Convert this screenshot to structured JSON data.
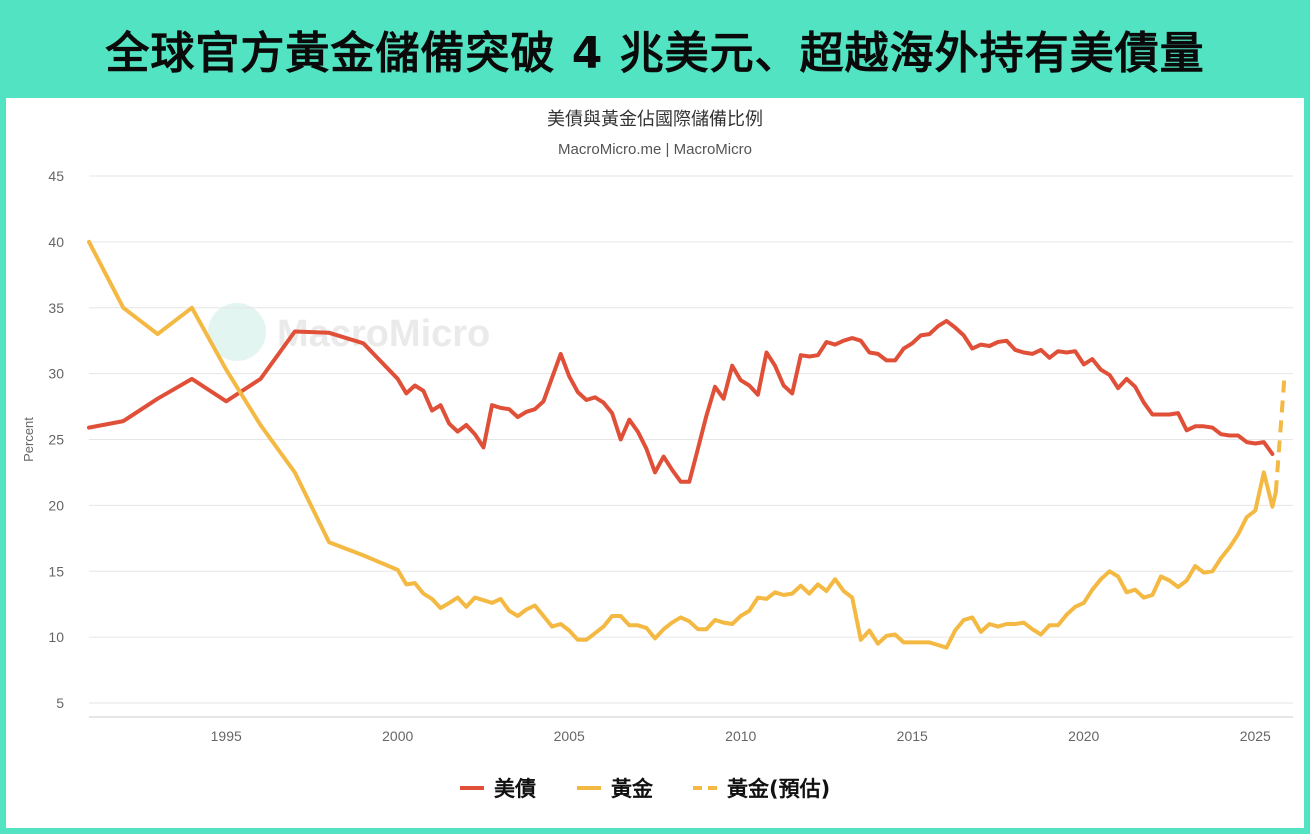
{
  "banner": {
    "title": "全球官方黃金儲備突破 4 兆美元、超越海外持有美債量"
  },
  "watermark": "MacroMicro",
  "colors": {
    "treasury": "#e05038",
    "gold": "#f4b942",
    "banner_bg": "#52e3c2"
  },
  "chart_data": {
    "type": "line",
    "title": "美債與黃金佔國際儲備比例",
    "subtitle": "MacroMicro.me | MacroMicro",
    "ylabel": "Percent",
    "xlabel": "",
    "ylim": [
      5,
      45
    ],
    "xlim": [
      1991,
      2026.1
    ],
    "yticks": [
      5,
      10,
      15,
      20,
      25,
      30,
      35,
      40,
      45
    ],
    "xticks": [
      1995,
      2000,
      2005,
      2010,
      2015,
      2020,
      2025
    ],
    "grid": "horizontal",
    "legend_position": "bottom",
    "series": [
      {
        "name": "美債",
        "style": "solid",
        "color": "#e05038",
        "points": [
          [
            1991.0,
            25.9
          ],
          [
            1992.0,
            26.4
          ],
          [
            1993.0,
            28.1
          ],
          [
            1994.0,
            29.6
          ],
          [
            1995.0,
            27.9
          ],
          [
            1996.0,
            29.6
          ],
          [
            1997.0,
            33.2
          ],
          [
            1998.0,
            33.1
          ],
          [
            1999.0,
            32.3
          ],
          [
            2000.0,
            29.6
          ],
          [
            2000.25,
            28.5
          ],
          [
            2000.5,
            29.1
          ],
          [
            2000.75,
            28.7
          ],
          [
            2001.0,
            27.2
          ],
          [
            2001.25,
            27.6
          ],
          [
            2001.5,
            26.2
          ],
          [
            2001.75,
            25.6
          ],
          [
            2002.0,
            26.1
          ],
          [
            2002.25,
            25.4
          ],
          [
            2002.5,
            24.4
          ],
          [
            2002.75,
            27.6
          ],
          [
            2003.0,
            27.4
          ],
          [
            2003.25,
            27.3
          ],
          [
            2003.5,
            26.7
          ],
          [
            2003.75,
            27.1
          ],
          [
            2004.0,
            27.3
          ],
          [
            2004.25,
            27.9
          ],
          [
            2004.5,
            29.7
          ],
          [
            2004.75,
            31.5
          ],
          [
            2005.0,
            29.8
          ],
          [
            2005.25,
            28.6
          ],
          [
            2005.5,
            28.0
          ],
          [
            2005.75,
            28.2
          ],
          [
            2006.0,
            27.8
          ],
          [
            2006.25,
            27.0
          ],
          [
            2006.5,
            25.0
          ],
          [
            2006.75,
            26.5
          ],
          [
            2007.0,
            25.6
          ],
          [
            2007.25,
            24.3
          ],
          [
            2007.5,
            22.5
          ],
          [
            2007.75,
            23.7
          ],
          [
            2008.0,
            22.7
          ],
          [
            2008.25,
            21.8
          ],
          [
            2008.5,
            21.8
          ],
          [
            2008.75,
            24.3
          ],
          [
            2009.0,
            26.8
          ],
          [
            2009.25,
            29.0
          ],
          [
            2009.5,
            28.1
          ],
          [
            2009.75,
            30.6
          ],
          [
            2010.0,
            29.5
          ],
          [
            2010.25,
            29.1
          ],
          [
            2010.5,
            28.4
          ],
          [
            2010.75,
            31.6
          ],
          [
            2011.0,
            30.6
          ],
          [
            2011.25,
            29.1
          ],
          [
            2011.5,
            28.5
          ],
          [
            2011.75,
            31.4
          ],
          [
            2012.0,
            31.3
          ],
          [
            2012.25,
            31.4
          ],
          [
            2012.5,
            32.4
          ],
          [
            2012.75,
            32.2
          ],
          [
            2013.0,
            32.5
          ],
          [
            2013.25,
            32.7
          ],
          [
            2013.5,
            32.5
          ],
          [
            2013.75,
            31.6
          ],
          [
            2014.0,
            31.5
          ],
          [
            2014.25,
            31.0
          ],
          [
            2014.5,
            31.0
          ],
          [
            2014.75,
            31.9
          ],
          [
            2015.0,
            32.3
          ],
          [
            2015.25,
            32.9
          ],
          [
            2015.5,
            33.0
          ],
          [
            2015.75,
            33.6
          ],
          [
            2016.0,
            34.0
          ],
          [
            2016.25,
            33.5
          ],
          [
            2016.5,
            32.9
          ],
          [
            2016.75,
            31.9
          ],
          [
            2017.0,
            32.2
          ],
          [
            2017.25,
            32.1
          ],
          [
            2017.5,
            32.4
          ],
          [
            2017.75,
            32.5
          ],
          [
            2018.0,
            31.8
          ],
          [
            2018.25,
            31.6
          ],
          [
            2018.5,
            31.5
          ],
          [
            2018.75,
            31.8
          ],
          [
            2019.0,
            31.2
          ],
          [
            2019.25,
            31.7
          ],
          [
            2019.5,
            31.6
          ],
          [
            2019.75,
            31.7
          ],
          [
            2020.0,
            30.7
          ],
          [
            2020.25,
            31.1
          ],
          [
            2020.5,
            30.3
          ],
          [
            2020.75,
            29.9
          ],
          [
            2021.0,
            28.9
          ],
          [
            2021.25,
            29.6
          ],
          [
            2021.5,
            29.0
          ],
          [
            2021.75,
            27.8
          ],
          [
            2022.0,
            26.9
          ],
          [
            2022.25,
            26.9
          ],
          [
            2022.5,
            26.9
          ],
          [
            2022.75,
            27.0
          ],
          [
            2023.0,
            25.7
          ],
          [
            2023.25,
            26.0
          ],
          [
            2023.5,
            26.0
          ],
          [
            2023.75,
            25.9
          ],
          [
            2024.0,
            25.4
          ],
          [
            2024.25,
            25.3
          ],
          [
            2024.5,
            25.3
          ],
          [
            2024.75,
            24.8
          ],
          [
            2025.0,
            24.7
          ],
          [
            2025.25,
            24.8
          ],
          [
            2025.5,
            23.9
          ]
        ]
      },
      {
        "name": "黃金",
        "style": "solid",
        "color": "#f4b942",
        "points": [
          [
            1991.0,
            40.0
          ],
          [
            1992.0,
            35.0
          ],
          [
            1993.0,
            33.0
          ],
          [
            1994.0,
            35.0
          ],
          [
            1995.0,
            30.3
          ],
          [
            1996.0,
            26.1
          ],
          [
            1997.0,
            22.5
          ],
          [
            1998.0,
            17.2
          ],
          [
            1999.0,
            16.2
          ],
          [
            2000.0,
            15.1
          ],
          [
            2000.25,
            14.0
          ],
          [
            2000.5,
            14.1
          ],
          [
            2000.75,
            13.3
          ],
          [
            2001.0,
            12.9
          ],
          [
            2001.25,
            12.2
          ],
          [
            2001.5,
            12.6
          ],
          [
            2001.75,
            13.0
          ],
          [
            2002.0,
            12.3
          ],
          [
            2002.25,
            13.0
          ],
          [
            2002.5,
            12.8
          ],
          [
            2002.75,
            12.6
          ],
          [
            2003.0,
            12.9
          ],
          [
            2003.25,
            12.0
          ],
          [
            2003.5,
            11.6
          ],
          [
            2003.75,
            12.1
          ],
          [
            2004.0,
            12.4
          ],
          [
            2004.25,
            11.6
          ],
          [
            2004.5,
            10.8
          ],
          [
            2004.75,
            11.0
          ],
          [
            2005.0,
            10.5
          ],
          [
            2005.25,
            9.8
          ],
          [
            2005.5,
            9.8
          ],
          [
            2005.75,
            10.3
          ],
          [
            2006.0,
            10.8
          ],
          [
            2006.25,
            11.6
          ],
          [
            2006.5,
            11.6
          ],
          [
            2006.75,
            10.9
          ],
          [
            2007.0,
            10.9
          ],
          [
            2007.25,
            10.7
          ],
          [
            2007.5,
            9.9
          ],
          [
            2007.75,
            10.6
          ],
          [
            2008.0,
            11.1
          ],
          [
            2008.25,
            11.5
          ],
          [
            2008.5,
            11.2
          ],
          [
            2008.75,
            10.6
          ],
          [
            2009.0,
            10.6
          ],
          [
            2009.25,
            11.3
          ],
          [
            2009.5,
            11.1
          ],
          [
            2009.75,
            11.0
          ],
          [
            2010.0,
            11.6
          ],
          [
            2010.25,
            12.0
          ],
          [
            2010.5,
            13.0
          ],
          [
            2010.75,
            12.9
          ],
          [
            2011.0,
            13.4
          ],
          [
            2011.25,
            13.2
          ],
          [
            2011.5,
            13.3
          ],
          [
            2011.75,
            13.9
          ],
          [
            2012.0,
            13.3
          ],
          [
            2012.25,
            14.0
          ],
          [
            2012.5,
            13.5
          ],
          [
            2012.75,
            14.4
          ],
          [
            2013.0,
            13.5
          ],
          [
            2013.25,
            13.0
          ],
          [
            2013.5,
            9.8
          ],
          [
            2013.75,
            10.5
          ],
          [
            2014.0,
            9.5
          ],
          [
            2014.25,
            10.1
          ],
          [
            2014.5,
            10.2
          ],
          [
            2014.75,
            9.6
          ],
          [
            2015.0,
            9.6
          ],
          [
            2015.25,
            9.6
          ],
          [
            2015.5,
            9.6
          ],
          [
            2015.75,
            9.4
          ],
          [
            2016.0,
            9.2
          ],
          [
            2016.25,
            10.5
          ],
          [
            2016.5,
            11.3
          ],
          [
            2016.75,
            11.5
          ],
          [
            2017.0,
            10.4
          ],
          [
            2017.25,
            11.0
          ],
          [
            2017.5,
            10.8
          ],
          [
            2017.75,
            11.0
          ],
          [
            2018.0,
            11.0
          ],
          [
            2018.25,
            11.1
          ],
          [
            2018.5,
            10.6
          ],
          [
            2018.75,
            10.2
          ],
          [
            2019.0,
            10.9
          ],
          [
            2019.25,
            10.9
          ],
          [
            2019.5,
            11.7
          ],
          [
            2019.75,
            12.3
          ],
          [
            2020.0,
            12.6
          ],
          [
            2020.25,
            13.6
          ],
          [
            2020.5,
            14.4
          ],
          [
            2020.75,
            15.0
          ],
          [
            2021.0,
            14.6
          ],
          [
            2021.25,
            13.4
          ],
          [
            2021.5,
            13.6
          ],
          [
            2021.75,
            13.0
          ],
          [
            2022.0,
            13.2
          ],
          [
            2022.25,
            14.6
          ],
          [
            2022.5,
            14.3
          ],
          [
            2022.75,
            13.8
          ],
          [
            2023.0,
            14.3
          ],
          [
            2023.25,
            15.4
          ],
          [
            2023.5,
            14.9
          ],
          [
            2023.75,
            15.0
          ],
          [
            2024.0,
            16.0
          ],
          [
            2024.25,
            16.8
          ],
          [
            2024.5,
            17.8
          ],
          [
            2024.75,
            19.1
          ],
          [
            2025.0,
            19.6
          ],
          [
            2025.25,
            22.5
          ],
          [
            2025.5,
            19.9
          ],
          [
            2025.6,
            21.0
          ]
        ]
      },
      {
        "name": "黃金(預估)",
        "style": "dashed",
        "color": "#f4b942",
        "points": [
          [
            2025.6,
            21.0
          ],
          [
            2025.85,
            29.7
          ]
        ]
      }
    ]
  }
}
